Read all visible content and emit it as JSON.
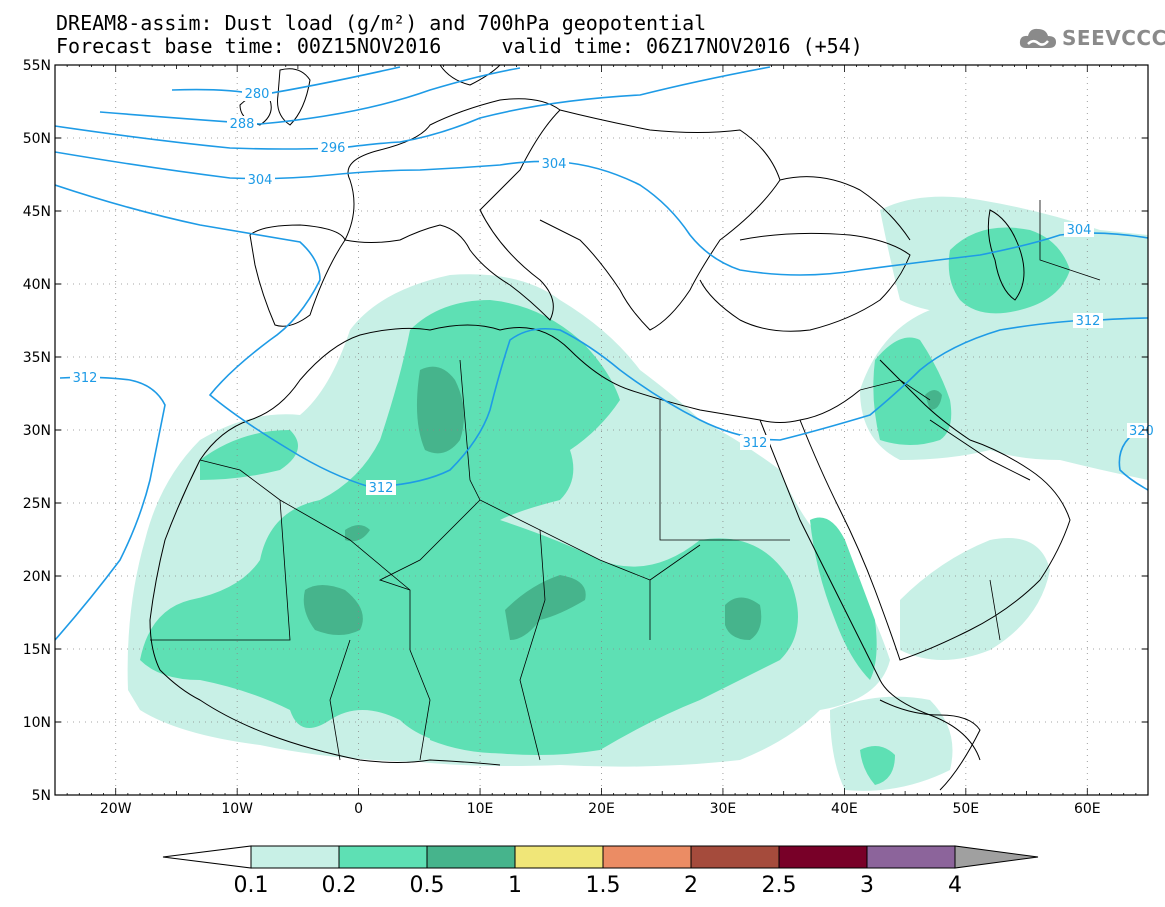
{
  "header": {
    "title_line1": "DREAM8-assim: Dust load (g/m²) and 700hPa geopotential",
    "title_line2": "Forecast base time: 00Z15NOV2016     valid time: 06Z17NOV2016 (+54)"
  },
  "logo": {
    "text": "SEEVCCC",
    "icon": "cloud-icon"
  },
  "map": {
    "lat_labels": [
      "55N",
      "50N",
      "45N",
      "40N",
      "35N",
      "30N",
      "25N",
      "20N",
      "15N",
      "10N",
      "5N"
    ],
    "lon_labels": [
      "20W",
      "10W",
      "0",
      "10E",
      "20E",
      "30E",
      "40E",
      "50E",
      "60E"
    ],
    "lat_range": [
      5,
      55
    ],
    "lon_range": [
      -25,
      65
    ],
    "grid": "dotted"
  },
  "contours": {
    "label_280": "280",
    "label_288": "288",
    "label_296": "296",
    "label_304a": "304",
    "label_304b": "304",
    "label_304c": "304",
    "label_312a": "312",
    "label_312b": "312",
    "label_312c": "312",
    "label_312d": "312",
    "label_320": "320"
  },
  "colorbar": {
    "labels": [
      "0.1",
      "0.2",
      "0.5",
      "1",
      "1.5",
      "2",
      "2.5",
      "3",
      "4"
    ],
    "colors": [
      "#ffffff",
      "#c8f0e6",
      "#5ee0b4",
      "#46b48c",
      "#f0e678",
      "#eb8c64",
      "#a54b3c",
      "#780028",
      "#8c649b",
      "#a0a0a0"
    ]
  },
  "colors": {
    "dust_01": "#c8f0e6",
    "dust_02": "#5ee0b4",
    "dust_05": "#46b48c",
    "contour": "#1e9be6",
    "coast": "#000000"
  }
}
